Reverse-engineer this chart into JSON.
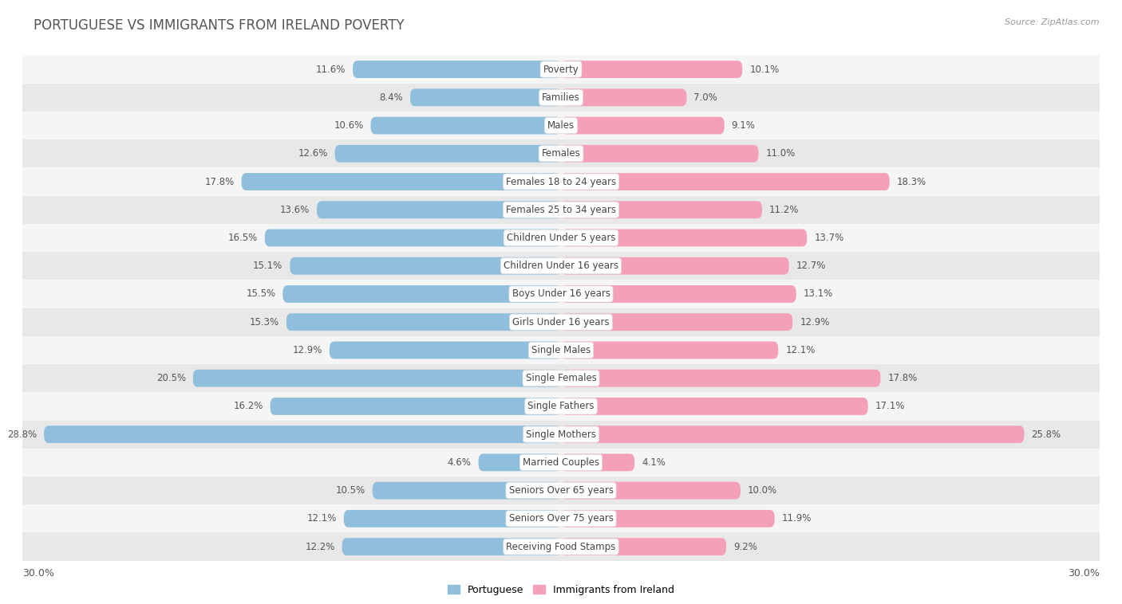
{
  "title": "PORTUGUESE VS IMMIGRANTS FROM IRELAND POVERTY",
  "source": "Source: ZipAtlas.com",
  "categories": [
    "Poverty",
    "Families",
    "Males",
    "Females",
    "Females 18 to 24 years",
    "Females 25 to 34 years",
    "Children Under 5 years",
    "Children Under 16 years",
    "Boys Under 16 years",
    "Girls Under 16 years",
    "Single Males",
    "Single Females",
    "Single Fathers",
    "Single Mothers",
    "Married Couples",
    "Seniors Over 65 years",
    "Seniors Over 75 years",
    "Receiving Food Stamps"
  ],
  "portuguese": [
    11.6,
    8.4,
    10.6,
    12.6,
    17.8,
    13.6,
    16.5,
    15.1,
    15.5,
    15.3,
    12.9,
    20.5,
    16.2,
    28.8,
    4.6,
    10.5,
    12.1,
    12.2
  ],
  "ireland": [
    10.1,
    7.0,
    9.1,
    11.0,
    18.3,
    11.2,
    13.7,
    12.7,
    13.1,
    12.9,
    12.1,
    17.8,
    17.1,
    25.8,
    4.1,
    10.0,
    11.9,
    9.2
  ],
  "portuguese_color": "#90bfdd",
  "ireland_color": "#f4a0b8",
  "row_color_light": "#f5f5f5",
  "row_color_dark": "#e8e8e8",
  "x_max": 30.0,
  "legend_portuguese": "Portuguese",
  "legend_ireland": "Immigrants from Ireland",
  "bar_height": 0.62,
  "title_fontsize": 12,
  "label_fontsize": 9,
  "value_fontsize": 8.5,
  "source_fontsize": 8,
  "title_color": "#555555",
  "source_color": "#999999",
  "value_color": "#555555",
  "cat_label_fontsize": 8.5
}
